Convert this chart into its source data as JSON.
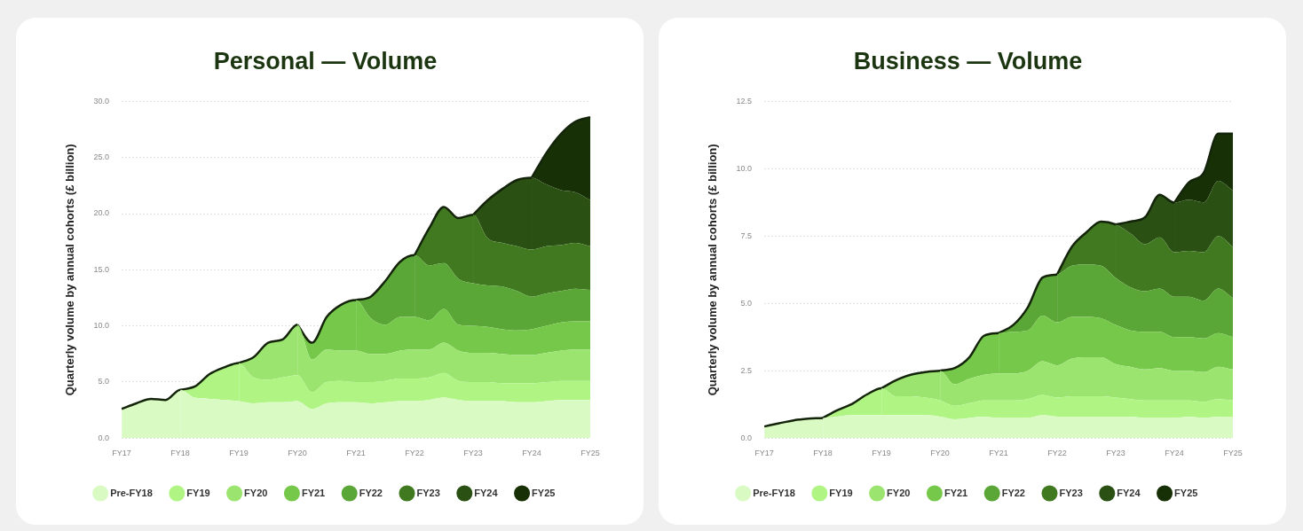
{
  "chart_data": [
    {
      "type": "area",
      "title": "Personal — Volume",
      "ylabel": "Quarterly volume by annual cohorts (£ billion)",
      "stacked": true,
      "legend": "bottom",
      "grid": "y",
      "categories": [
        "FY17",
        null,
        null,
        null,
        "FY18",
        null,
        null,
        null,
        "FY19",
        null,
        null,
        null,
        "FY20",
        null,
        null,
        null,
        "FY21",
        null,
        null,
        null,
        "FY22",
        null,
        null,
        null,
        "FY23",
        null,
        null,
        null,
        "FY24",
        null,
        null,
        null,
        "FY25"
      ],
      "ylim": [
        0,
        30
      ],
      "yticks": [
        {
          "value": 0,
          "label": "0.0"
        },
        {
          "value": 5,
          "label": "5.0"
        },
        {
          "value": 10,
          "label": "10.0"
        },
        {
          "value": 15,
          "label": "15.0"
        },
        {
          "value": 20,
          "label": "20.0"
        },
        {
          "value": 25,
          "label": "25.0"
        },
        {
          "value": 30,
          "label": "30.0"
        }
      ],
      "series": [
        {
          "name": "Pre-FY18",
          "color": "#d9fbc3",
          "values": [
            2.6,
            3.1,
            3.5,
            3.4,
            4.3,
            3.6,
            3.5,
            3.4,
            3.3,
            3.1,
            3.2,
            3.2,
            3.3,
            2.6,
            3.1,
            3.2,
            3.2,
            3.1,
            3.2,
            3.3,
            3.3,
            3.4,
            3.6,
            3.4,
            3.3,
            3.3,
            3.3,
            3.2,
            3.2,
            3.3,
            3.4,
            3.4,
            3.4
          ]
        },
        {
          "name": "FY19",
          "color": "#b0f584",
          "values": [
            null,
            null,
            null,
            null,
            0,
            1.0,
            2.2,
            2.9,
            3.4,
            2.3,
            2.0,
            2.2,
            2.3,
            1.5,
            1.9,
            1.9,
            1.8,
            1.9,
            1.9,
            2.0,
            2.0,
            2.0,
            2.2,
            1.7,
            1.7,
            1.7,
            1.6,
            1.7,
            1.7,
            1.7,
            1.7,
            1.7,
            1.7
          ]
        },
        {
          "name": "FY20",
          "color": "#9be46f",
          "values": [
            null,
            null,
            null,
            null,
            null,
            null,
            null,
            null,
            0,
            1.8,
            3.3,
            3.4,
            4.5,
            2.9,
            2.9,
            2.7,
            2.8,
            2.5,
            2.4,
            2.5,
            2.6,
            2.5,
            2.7,
            2.7,
            2.6,
            2.6,
            2.6,
            2.5,
            2.5,
            2.6,
            2.7,
            2.8,
            2.8
          ]
        },
        {
          "name": "FY21",
          "color": "#76c84a",
          "values": [
            null,
            null,
            null,
            null,
            null,
            null,
            null,
            null,
            null,
            null,
            null,
            null,
            0,
            1.5,
            2.9,
            4.1,
            4.5,
            3.2,
            2.6,
            3.0,
            2.9,
            2.6,
            3.0,
            2.3,
            2.4,
            2.3,
            2.2,
            2.2,
            2.3,
            2.4,
            2.5,
            2.5,
            2.5
          ]
        },
        {
          "name": "FY22",
          "color": "#5aa637",
          "values": [
            null,
            null,
            null,
            null,
            null,
            null,
            null,
            null,
            null,
            null,
            null,
            null,
            null,
            null,
            null,
            null,
            0,
            1.9,
            3.9,
            4.9,
            5.5,
            4.9,
            4.1,
            4.1,
            3.8,
            3.7,
            3.8,
            3.5,
            2.9,
            2.9,
            2.8,
            2.9,
            2.8
          ]
        },
        {
          "name": "FY23",
          "color": "#40791f",
          "values": [
            null,
            null,
            null,
            null,
            null,
            null,
            null,
            null,
            null,
            null,
            null,
            null,
            null,
            null,
            null,
            null,
            null,
            null,
            null,
            null,
            0,
            3.3,
            5.0,
            5.4,
            6.1,
            4.2,
            3.9,
            4.0,
            4.2,
            4.2,
            4.1,
            4.1,
            3.9
          ]
        },
        {
          "name": "FY24",
          "color": "#2a5014",
          "values": [
            null,
            null,
            null,
            null,
            null,
            null,
            null,
            null,
            null,
            null,
            null,
            null,
            null,
            null,
            null,
            null,
            null,
            null,
            null,
            null,
            null,
            null,
            null,
            null,
            0,
            3.4,
            4.8,
            5.9,
            6.4,
            5.5,
            4.9,
            4.5,
            4.1
          ]
        },
        {
          "name": "FY25",
          "color": "#183006",
          "values": [
            null,
            null,
            null,
            null,
            null,
            null,
            null,
            null,
            null,
            null,
            null,
            null,
            null,
            null,
            null,
            null,
            null,
            null,
            null,
            null,
            null,
            null,
            null,
            null,
            null,
            null,
            null,
            null,
            0,
            2.8,
            5.0,
            6.3,
            7.4
          ]
        }
      ]
    },
    {
      "type": "area",
      "title": "Business — Volume",
      "ylabel": "Quarterly volume by annual cohorts (£ billion)",
      "stacked": true,
      "legend": "bottom",
      "grid": "y",
      "categories": [
        "FY17",
        null,
        null,
        null,
        "FY18",
        null,
        null,
        null,
        "FY19",
        null,
        null,
        null,
        "FY20",
        null,
        null,
        null,
        "FY21",
        null,
        null,
        null,
        "FY22",
        null,
        null,
        null,
        "FY23",
        null,
        null,
        null,
        "FY24",
        null,
        null,
        null,
        "FY25"
      ],
      "ylim": [
        0,
        12.5
      ],
      "yticks": [
        {
          "value": 0,
          "label": "0.0"
        },
        2.5,
        {
          "value": 5,
          "label": "5.0"
        },
        7.5,
        {
          "value": 10,
          "label": "10.0"
        },
        12.5
      ],
      "series": [
        {
          "name": "Pre-FY18",
          "color": "#d9fbc3",
          "values": [
            0.43,
            0.55,
            0.66,
            0.72,
            0.75,
            0.8,
            0.85,
            0.85,
            0.85,
            0.85,
            0.85,
            0.85,
            0.8,
            0.7,
            0.75,
            0.8,
            0.75,
            0.75,
            0.75,
            0.85,
            0.8,
            0.8,
            0.8,
            0.8,
            0.8,
            0.8,
            0.75,
            0.75,
            0.75,
            0.8,
            0.75,
            0.8,
            0.8
          ]
        },
        {
          "name": "FY19",
          "color": "#b0f584",
          "values": [
            null,
            null,
            null,
            null,
            0,
            0.24,
            0.42,
            0.77,
            1.0,
            0.7,
            0.7,
            0.65,
            0.6,
            0.5,
            0.55,
            0.6,
            0.65,
            0.65,
            0.7,
            0.75,
            0.7,
            0.75,
            0.75,
            0.75,
            0.7,
            0.65,
            0.65,
            0.65,
            0.65,
            0.6,
            0.6,
            0.65,
            0.6
          ]
        },
        {
          "name": "FY20",
          "color": "#9be46f",
          "values": [
            null,
            null,
            null,
            null,
            null,
            null,
            null,
            null,
            0,
            0.6,
            0.8,
            0.95,
            1.1,
            0.8,
            0.9,
            0.95,
            1.0,
            1.0,
            1.05,
            1.25,
            1.2,
            1.4,
            1.45,
            1.45,
            1.25,
            1.2,
            1.15,
            1.2,
            1.1,
            1.1,
            1.1,
            1.2,
            1.15
          ]
        },
        {
          "name": "FY21",
          "color": "#76c84a",
          "values": [
            null,
            null,
            null,
            null,
            null,
            null,
            null,
            null,
            null,
            null,
            null,
            null,
            0,
            0.6,
            0.8,
            1.45,
            1.5,
            1.55,
            1.5,
            1.7,
            1.6,
            1.55,
            1.5,
            1.45,
            1.45,
            1.35,
            1.4,
            1.35,
            1.25,
            1.25,
            1.25,
            1.25,
            1.2
          ]
        },
        {
          "name": "FY22",
          "color": "#5aa637",
          "values": [
            null,
            null,
            null,
            null,
            null,
            null,
            null,
            null,
            null,
            null,
            null,
            null,
            null,
            null,
            null,
            null,
            0,
            0.25,
            0.86,
            1.41,
            1.78,
            1.9,
            1.95,
            1.95,
            1.75,
            1.6,
            1.5,
            1.6,
            1.5,
            1.5,
            1.4,
            1.65,
            1.45
          ]
        },
        {
          "name": "FY23",
          "color": "#40791f",
          "values": [
            null,
            null,
            null,
            null,
            null,
            null,
            null,
            null,
            null,
            null,
            null,
            null,
            null,
            null,
            null,
            null,
            null,
            null,
            null,
            null,
            0,
            0.7,
            1.19,
            1.64,
            1.98,
            2.0,
            1.75,
            1.9,
            1.65,
            1.7,
            1.8,
            1.95,
            1.9
          ]
        },
        {
          "name": "FY24",
          "color": "#2a5014",
          "values": [
            null,
            null,
            null,
            null,
            null,
            null,
            null,
            null,
            null,
            null,
            null,
            null,
            null,
            null,
            null,
            null,
            null,
            null,
            null,
            null,
            null,
            null,
            null,
            null,
            0,
            0.44,
            1.0,
            1.58,
            1.84,
            1.9,
            1.85,
            2.05,
            2.1
          ]
        },
        {
          "name": "FY25",
          "color": "#183006",
          "values": [
            null,
            null,
            null,
            null,
            null,
            null,
            null,
            null,
            null,
            null,
            null,
            null,
            null,
            null,
            null,
            null,
            null,
            null,
            null,
            null,
            null,
            null,
            null,
            null,
            null,
            null,
            null,
            null,
            0,
            0.65,
            1.09,
            1.75,
            2.1
          ]
        }
      ]
    }
  ]
}
